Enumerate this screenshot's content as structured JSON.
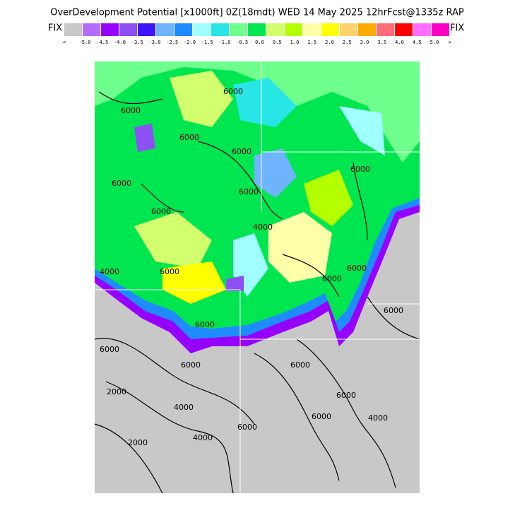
{
  "header": {
    "title": "OverDevelopment Potential [x1000ft] 0Z(18mdt) WED 14 May 2025 12hrFcst@1335z RAP",
    "left_label": "FIX",
    "right_label": "FIX"
  },
  "colorbar": {
    "low_label": "<",
    "high_label": ">",
    "colors": [
      "#c8c8c8",
      "#b46eff",
      "#9600ff",
      "#8c50f5",
      "#3c14ff",
      "#6eb4ff",
      "#1e8cff",
      "#a0ffff",
      "#28e6e6",
      "#6eff8c",
      "#00e650",
      "#d2ff6e",
      "#b4ff00",
      "#ffffaa",
      "#ffff00",
      "#ffd26e",
      "#ffaa00",
      "#ff6e78",
      "#ff0000",
      "#ff6eff",
      "#ff00c8"
    ],
    "labels": [
      "-5.0",
      "-4.5",
      "-4.0",
      "-3.5",
      "-3.0",
      "-2.5",
      "-2.0",
      "-1.5",
      "-1.0",
      "-0.5",
      "0.0",
      "0.5",
      "1.0",
      "1.5",
      "2.0",
      "2.5",
      "3.0",
      "3.5",
      "4.0",
      "4.5",
      "5.0"
    ]
  },
  "contours": {
    "labels": [
      "6000",
      "6000",
      "6000",
      "6000",
      "6000",
      "6000",
      "4000",
      "6000",
      "6000",
      "6000",
      "6000",
      "6000",
      "2000",
      "4000",
      "2000",
      "4000",
      "6000",
      "6000",
      "6000",
      "6000",
      "4000",
      "6000",
      "6000",
      "6000",
      "6000",
      "4000"
    ]
  }
}
